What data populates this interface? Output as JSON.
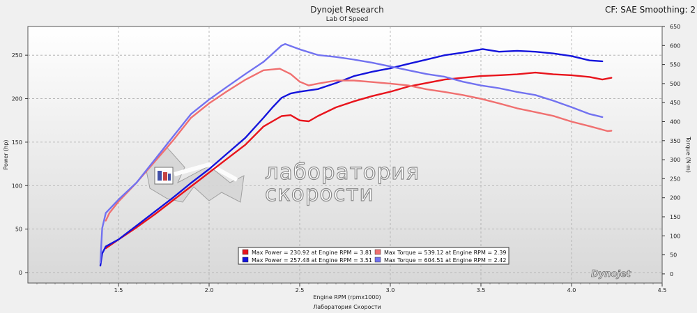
{
  "header": {
    "title": "Dynojet Research",
    "subtitle": "Lab Of Speed",
    "cf_text": "CF: SAE Smoothing: 2"
  },
  "footer": {
    "text": "Лаборатория Скорости"
  },
  "watermark": {
    "line1": "лаборатория",
    "line2": "скорости"
  },
  "brand": "Dynojet",
  "chart_data": {
    "type": "line",
    "xlabel": "Engine RPM (rpmx1000)",
    "ylabel_left": "Power (hp)",
    "ylabel_right": "Torque (N·m)",
    "xlim": [
      1.0,
      4.5
    ],
    "ylim_left": [
      -12,
      283
    ],
    "ylim_right": [
      -24,
      650
    ],
    "x_ticks": [
      "1.5",
      "2.0",
      "2.5",
      "3.0",
      "3.5",
      "4.0",
      "4.5"
    ],
    "y_left_ticks": [
      "0",
      "50",
      "100",
      "150",
      "200",
      "250"
    ],
    "y_right_ticks": [
      "0",
      "50",
      "100",
      "150",
      "200",
      "250",
      "300",
      "350",
      "400",
      "450",
      "500",
      "550",
      "600",
      "650"
    ],
    "grid": true,
    "legend_position": "bottom-center",
    "legend": [
      "Max Power = 230.92 at Engine RPM = 3.81",
      "Max Torque = 539.12 at Engine RPM = 2.39",
      "Max Power = 257.48 at Engine RPM = 3.51",
      "Max Torque = 604.51 at Engine RPM = 2.42"
    ],
    "colors": {
      "power_red": "#e8141c",
      "power_blue": "#1414dc",
      "torque_red": "#f07070",
      "torque_blue": "#7272f0"
    },
    "series": [
      {
        "axis": "left",
        "color": "#e8141c",
        "x": [
          1.43,
          1.5,
          1.6,
          1.7,
          1.8,
          1.9,
          2.0,
          2.1,
          2.2,
          2.3,
          2.4,
          2.45,
          2.5,
          2.55,
          2.6,
          2.7,
          2.8,
          2.9,
          3.0,
          3.1,
          3.2,
          3.3,
          3.4,
          3.5,
          3.6,
          3.7,
          3.8,
          3.9,
          4.0,
          4.1,
          4.17,
          4.22
        ],
        "y": [
          28,
          38,
          52,
          67,
          83,
          99,
          115,
          131,
          147,
          168,
          180,
          181,
          175,
          174,
          180,
          190,
          197,
          203,
          208,
          214,
          218,
          222,
          224,
          226,
          227,
          228,
          230,
          228,
          227,
          225,
          222,
          224
        ]
      },
      {
        "axis": "left",
        "color": "#1414dc",
        "x": [
          1.4,
          1.41,
          1.43,
          1.5,
          1.6,
          1.7,
          1.8,
          1.9,
          2.0,
          2.1,
          2.2,
          2.3,
          2.35,
          2.4,
          2.45,
          2.5,
          2.6,
          2.7,
          2.8,
          2.9,
          3.0,
          3.1,
          3.2,
          3.3,
          3.4,
          3.51,
          3.6,
          3.7,
          3.8,
          3.9,
          4.0,
          4.1,
          4.17
        ],
        "y": [
          8,
          22,
          30,
          38,
          54,
          70,
          86,
          103,
          119,
          137,
          155,
          178,
          190,
          201,
          206,
          208,
          211,
          218,
          226,
          231,
          235,
          240,
          245,
          250,
          253,
          257,
          254,
          255,
          254,
          252,
          249,
          244,
          243
        ]
      },
      {
        "axis": "right",
        "color": "#f07070",
        "x": [
          1.43,
          1.45,
          1.5,
          1.6,
          1.7,
          1.8,
          1.9,
          2.0,
          2.1,
          2.2,
          2.3,
          2.39,
          2.45,
          2.5,
          2.55,
          2.6,
          2.7,
          2.8,
          2.9,
          3.0,
          3.1,
          3.2,
          3.3,
          3.4,
          3.5,
          3.6,
          3.7,
          3.8,
          3.9,
          4.0,
          4.1,
          4.2,
          4.22
        ],
        "y": [
          140,
          160,
          190,
          240,
          295,
          350,
          410,
          448,
          480,
          510,
          535,
          539,
          525,
          505,
          495,
          500,
          508,
          508,
          504,
          500,
          495,
          485,
          478,
          470,
          460,
          448,
          435,
          425,
          415,
          400,
          388,
          375,
          376
        ]
      },
      {
        "axis": "right",
        "color": "#7272f0",
        "x": [
          1.4,
          1.41,
          1.43,
          1.5,
          1.6,
          1.7,
          1.8,
          1.9,
          2.0,
          2.1,
          2.2,
          2.3,
          2.4,
          2.42,
          2.5,
          2.6,
          2.7,
          2.8,
          2.9,
          3.0,
          3.1,
          3.2,
          3.3,
          3.4,
          3.5,
          3.6,
          3.7,
          3.8,
          3.9,
          4.0,
          4.1,
          4.17
        ],
        "y": [
          30,
          120,
          160,
          195,
          240,
          300,
          360,
          420,
          458,
          492,
          525,
          557,
          600,
          604,
          590,
          575,
          570,
          563,
          555,
          545,
          535,
          525,
          518,
          505,
          495,
          488,
          478,
          470,
          455,
          438,
          420,
          412
        ]
      }
    ]
  }
}
